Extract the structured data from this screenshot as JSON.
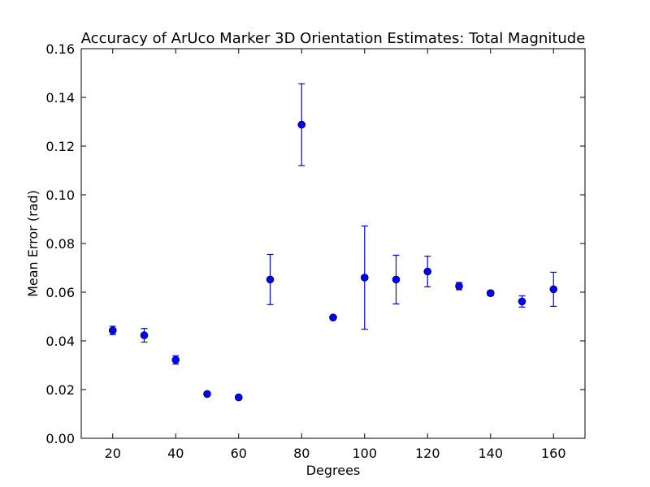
{
  "chart_data": {
    "type": "scatter",
    "title": "Accuracy of ArUco Marker 3D Orientation Estimates: Total Magnitude",
    "xlabel": "Degrees",
    "ylabel": "Mean Error (rad)",
    "xlim": [
      10,
      170
    ],
    "ylim": [
      0.0,
      0.16
    ],
    "xticks": [
      20,
      40,
      60,
      80,
      100,
      120,
      140,
      160
    ],
    "xtick_labels": [
      "20",
      "40",
      "60",
      "80",
      "100",
      "120",
      "140",
      "160"
    ],
    "yticks": [
      0.0,
      0.02,
      0.04,
      0.06,
      0.08,
      0.1,
      0.12,
      0.14,
      0.16
    ],
    "ytick_labels": [
      "0.00",
      "0.02",
      "0.04",
      "0.06",
      "0.08",
      "0.10",
      "0.12",
      "0.14",
      "0.16"
    ],
    "grid": false,
    "marker_color": "#0000ff",
    "points": [
      {
        "x": 20,
        "y": 0.0443,
        "err": 0.0017
      },
      {
        "x": 30,
        "y": 0.0423,
        "err": 0.0028
      },
      {
        "x": 40,
        "y": 0.0322,
        "err": 0.0017
      },
      {
        "x": 50,
        "y": 0.0182,
        "err": 0.0008
      },
      {
        "x": 60,
        "y": 0.0168,
        "err": 0.0008
      },
      {
        "x": 70,
        "y": 0.0652,
        "err": 0.0103
      },
      {
        "x": 80,
        "y": 0.1288,
        "err": 0.0168
      },
      {
        "x": 90,
        "y": 0.0496,
        "err": 0.0005
      },
      {
        "x": 100,
        "y": 0.066,
        "err": 0.0212
      },
      {
        "x": 110,
        "y": 0.0652,
        "err": 0.01
      },
      {
        "x": 120,
        "y": 0.0685,
        "err": 0.0063
      },
      {
        "x": 130,
        "y": 0.0625,
        "err": 0.0015
      },
      {
        "x": 140,
        "y": 0.0596,
        "err": 0.001
      },
      {
        "x": 150,
        "y": 0.0562,
        "err": 0.0023
      },
      {
        "x": 160,
        "y": 0.0612,
        "err": 0.007
      }
    ]
  }
}
